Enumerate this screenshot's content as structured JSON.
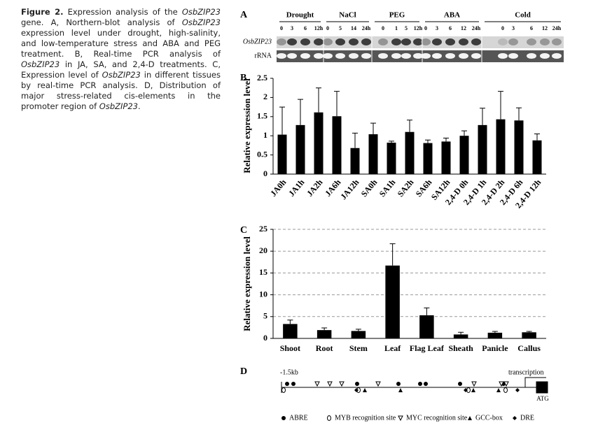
{
  "caption": {
    "label": "Figure 2.",
    "segments": [
      "Expression analysis of the ",
      "OsbZIP23",
      " gene. A, Northern-blot analysis of ",
      "OsbZIP23",
      " expression level under drought, high-salinity, and low-temperature stress and ABA and PEG treatment. B, Real-time PCR analysis of ",
      "OsbZIP23",
      " in JA, SA, and 2,4-D treatments. C, Expression level of ",
      "OsbZIP23",
      " in different tissues by real-time PCR analysis. D, Distribution of major stress-related cis-elements in the promoter region of ",
      "OsbZIP23",
      "."
    ]
  },
  "panel_a": {
    "label": "A",
    "rows": [
      "OsbZIP23",
      "rRNA"
    ],
    "groups": [
      {
        "name": "Drought",
        "lanes": [
          "0",
          "3",
          "6",
          "12h"
        ]
      },
      {
        "name": "NaCl",
        "lanes": [
          "0",
          "5",
          "14",
          "24h"
        ]
      },
      {
        "name": "PEG",
        "lanes": [
          "0",
          "1",
          "5",
          "12h"
        ]
      },
      {
        "name": "ABA",
        "lanes": [
          "0",
          "3",
          "6",
          "12",
          "24h"
        ]
      },
      {
        "name": "Cold",
        "lanes": [
          "0",
          "3",
          "6",
          "12",
          "24h"
        ]
      }
    ]
  },
  "chart_data": [
    {
      "type": "bar",
      "label": "B",
      "y_label": "Relative expression level",
      "categories": [
        "JA0h",
        "JA1h",
        "JA2h",
        "JA6h",
        "JA12h",
        "SA0h",
        "SA1h",
        "SA2h",
        "SA6h",
        "SA12h",
        "2,4-D 0h",
        "2,4-D 1h",
        "2,4-D 2h",
        "2,4-D 6h",
        "2,4-D 12h"
      ],
      "values": [
        1.03,
        1.28,
        1.61,
        1.51,
        0.68,
        1.04,
        0.82,
        1.1,
        0.81,
        0.85,
        1.0,
        1.28,
        1.43,
        1.4,
        0.88
      ],
      "errors": [
        0.72,
        0.67,
        0.64,
        0.65,
        0.39,
        0.29,
        0.04,
        0.31,
        0.08,
        0.09,
        0.13,
        0.44,
        0.73,
        0.33,
        0.17
      ],
      "color": "#000000",
      "ylim": [
        0,
        2.5
      ],
      "yticks": [
        0,
        0.5,
        1,
        1.5,
        2,
        2.5
      ],
      "grid": false
    },
    {
      "type": "bar",
      "label": "C",
      "y_label": "Relative expression level",
      "categories": [
        "Shoot",
        "Root",
        "Stem",
        "Leaf",
        "Flag Leaf",
        "Sheath",
        "Panicle",
        "Callus"
      ],
      "values": [
        3.3,
        1.9,
        1.7,
        16.7,
        5.3,
        0.9,
        1.3,
        1.4
      ],
      "errors": [
        0.9,
        0.5,
        0.4,
        5.0,
        1.7,
        0.5,
        0.3,
        0.2
      ],
      "color": "#000000",
      "ylim": [
        0,
        25
      ],
      "yticks": [
        0,
        5,
        10,
        15,
        20,
        25
      ],
      "grid": true
    }
  ],
  "panel_d": {
    "label": "D",
    "start": "-1.5kb",
    "transcription": "transcription",
    "atg": "ATG",
    "legend": [
      "ABRE",
      "MYB recognition site",
      "MYC recognition site",
      "GCC-box",
      "DRE"
    ]
  }
}
